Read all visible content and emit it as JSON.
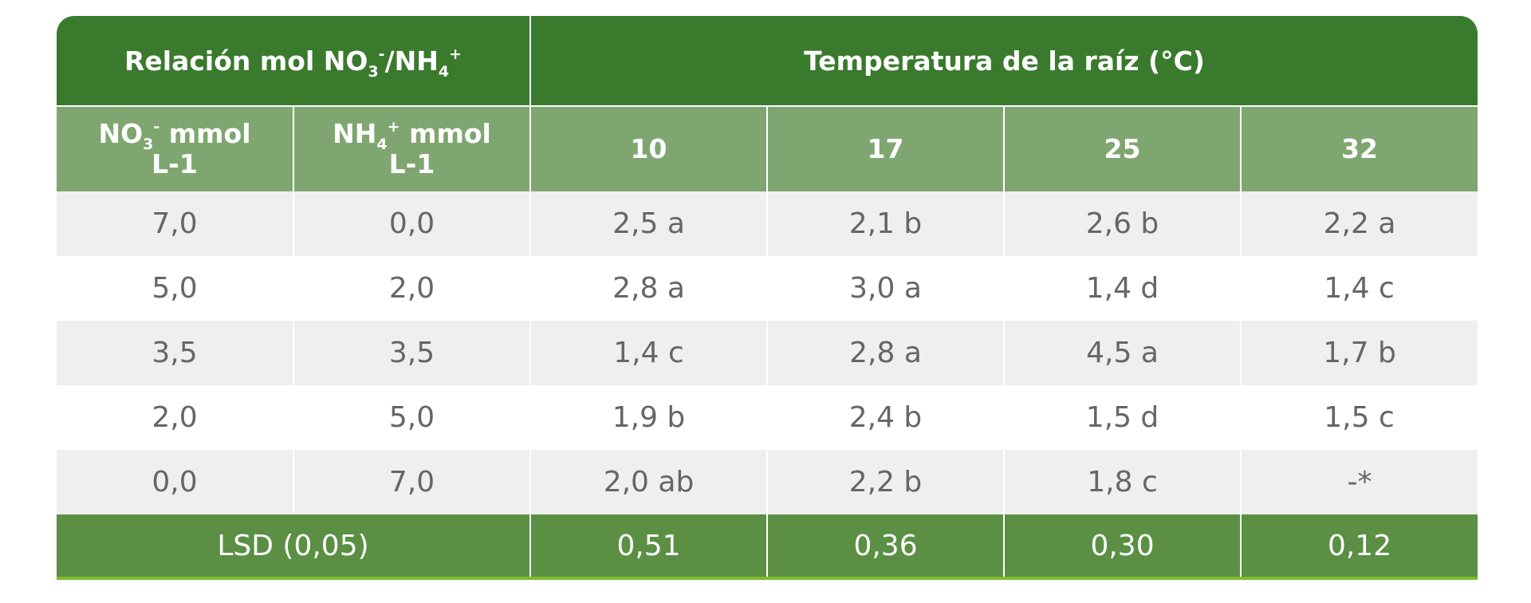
{
  "header": {
    "ratio_title": "Relación mol NO",
    "ratio_no3_sub": "3",
    "ratio_no3_sup": "-",
    "ratio_sep": "/NH",
    "ratio_nh4_sub": "4",
    "ratio_nh4_sup": "+",
    "temp_title": "Temperatura de la raíz (°C)",
    "col_no3_pre": "NO",
    "col_no3_sub": "3",
    "col_no3_sup": "-",
    "col_no3_post": " mmol",
    "col_no3_unit": "L-1",
    "col_nh4_pre": "NH",
    "col_nh4_sub": "4",
    "col_nh4_sup": "+",
    "col_nh4_post": " mmol",
    "col_nh4_unit": "L-1",
    "temps": [
      "10",
      "17",
      "25",
      "32"
    ]
  },
  "rows": [
    [
      "7,0",
      "0,0",
      "2,5 a",
      "2,1 b",
      "2,6 b",
      "2,2 a"
    ],
    [
      "5,0",
      "2,0",
      "2,8 a",
      "3,0 a",
      "1,4 d",
      "1,4 c"
    ],
    [
      "3,5",
      "3,5",
      "1,4 c",
      "2,8 a",
      "4,5 a",
      "1,7 b"
    ],
    [
      "2,0",
      "5,0",
      "1,9 b",
      "2,4 b",
      "1,5 d",
      "1,5 c"
    ],
    [
      "0,0",
      "7,0",
      "2,0 ab",
      "2,2 b",
      "1,8 c",
      "-*"
    ]
  ],
  "footer": {
    "label": "LSD (0,05)",
    "values": [
      "0,51",
      "0,36",
      "0,30",
      "0,12"
    ]
  },
  "colors": {
    "header_dark": "#3a7a2d",
    "header_light": "#7fa670",
    "footer": "#5a8f44",
    "stripe": "#efefef",
    "text": "#666666"
  }
}
